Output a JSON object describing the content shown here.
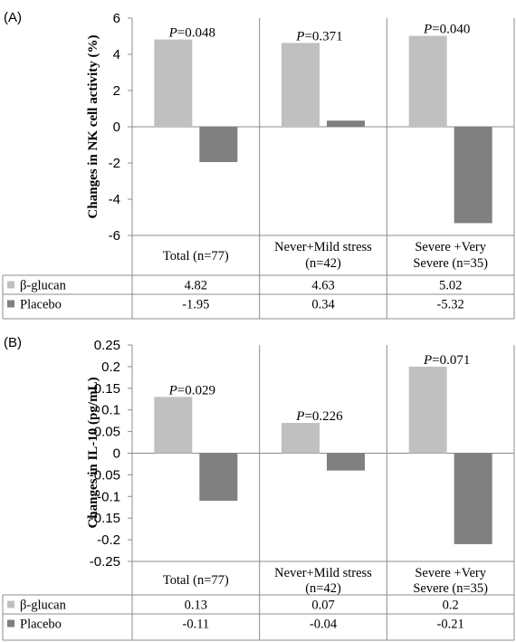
{
  "chart_data": [
    {
      "type": "bar",
      "panel_label": "(A)",
      "ylabel": "Changes in NK cell activity (%)",
      "ylim": [
        -6,
        6
      ],
      "yticks": [
        "6",
        "4",
        "2",
        "0",
        "-2",
        "-4",
        "-6"
      ],
      "categories": [
        "Total (n=77)",
        "Never+Mild stress (n=42)",
        "Severe +Very Severe (n=35)"
      ],
      "series": [
        {
          "name": "β-glucan",
          "color": "#c0c0c0",
          "values": [
            4.82,
            4.63,
            5.02
          ],
          "labels": [
            "4.82",
            "4.63",
            "5.02"
          ]
        },
        {
          "name": "Placebo",
          "color": "#808080",
          "values": [
            -1.95,
            0.34,
            -5.32
          ],
          "labels": [
            "-1.95",
            "0.34",
            "-5.32"
          ]
        }
      ],
      "annotations": [
        "=0.048",
        "=0.371",
        "=0.040"
      ],
      "p_symbol": "P"
    },
    {
      "type": "bar",
      "panel_label": "(B)",
      "ylabel": "Changes in IL-10 (pg/mL)",
      "ylim": [
        -0.25,
        0.25
      ],
      "yticks": [
        "0.25",
        "0.2",
        "0.15",
        "0.1",
        "0.05",
        "0",
        "-0.05",
        "-0.1",
        "-0.15",
        "-0.2",
        "-0.25"
      ],
      "categories": [
        "Total (n=77)",
        "Never+Mild stress (n=42)",
        "Severe +Very Severe (n=35)"
      ],
      "series": [
        {
          "name": "β-glucan",
          "color": "#c0c0c0",
          "values": [
            0.13,
            0.07,
            0.2
          ],
          "labels": [
            "0.13",
            "0.07",
            "0.2"
          ]
        },
        {
          "name": "Placebo",
          "color": "#808080",
          "values": [
            -0.11,
            -0.04,
            -0.21
          ],
          "labels": [
            "-0.11",
            "-0.04",
            "-0.21"
          ]
        }
      ],
      "annotations": [
        "=0.029",
        "=0.226",
        "=0.071"
      ],
      "p_symbol": "P"
    }
  ]
}
